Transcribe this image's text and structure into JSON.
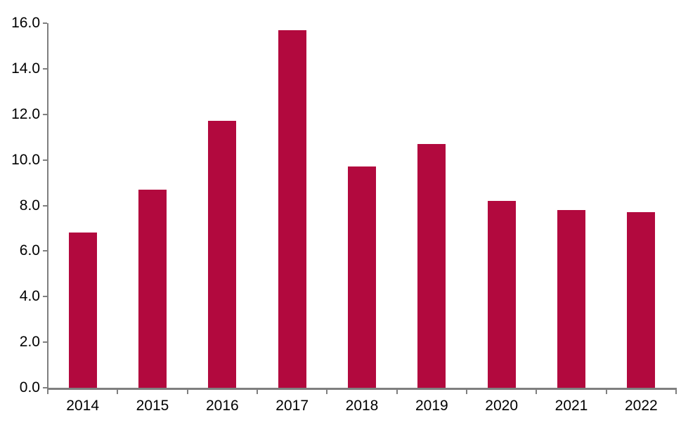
{
  "chart_data": {
    "type": "bar",
    "title": "",
    "xlabel": "",
    "ylabel": "",
    "categories": [
      "2014",
      "2015",
      "2016",
      "2017",
      "2018",
      "2019",
      "2020",
      "2021",
      "2022"
    ],
    "values": [
      6.8,
      8.7,
      11.7,
      15.7,
      9.7,
      10.7,
      8.2,
      7.8,
      7.7
    ],
    "ylim": [
      0,
      16
    ],
    "y_tick_interval": 2,
    "y_tick_labels": [
      "0.0",
      "2.0",
      "4.0",
      "6.0",
      "8.0",
      "10.0",
      "12.0",
      "14.0",
      "16.0"
    ],
    "grid": false,
    "legend": "none",
    "colors": {
      "bar": "#B2093E",
      "axis": "#7F7F7F",
      "text": "#000000",
      "background": "#FFFFFF"
    }
  }
}
